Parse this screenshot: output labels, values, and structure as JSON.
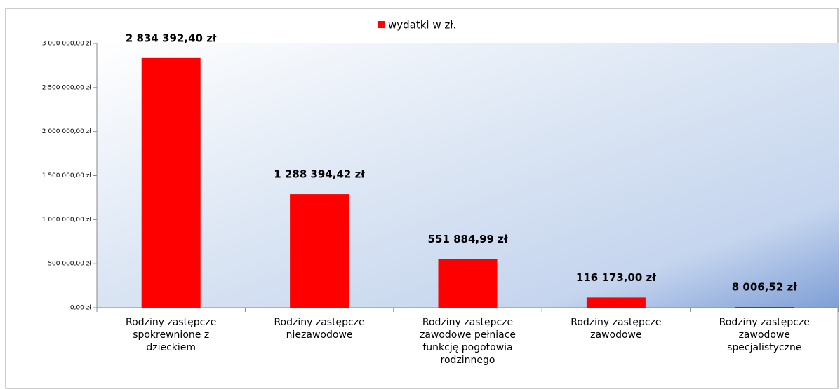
{
  "chart_data": {
    "type": "bar",
    "categories": [
      "Rodziny zastępcze spokrewnione z dzieckiem",
      "Rodziny zastępcze niezawodowe",
      "Rodziny zastępcze zawodowe pełniace funkcję pogotowia rodzinnego",
      "Rodziny zastępcze zawodowe",
      "Rodziny zastępcze zawodowe specjalistyczne"
    ],
    "series": [
      {
        "name": "wydatki w zł.",
        "color": "#ff0000",
        "values": [
          2834392.4,
          1288394.42,
          551884.99,
          116173.0,
          8006.52
        ],
        "value_labels": [
          "2 834 392,40 zł",
          "1 288 394,42 zł",
          "551 884,99 zł",
          "116 173,00 zł",
          "8 006,52 zł"
        ]
      }
    ],
    "ylim": [
      0,
      3000000
    ],
    "yticks": [
      {
        "value": 0,
        "label": "0,00 zł"
      },
      {
        "value": 500000,
        "label": "500 000,00 zł"
      },
      {
        "value": 1000000,
        "label": "1 000 000,00 zł"
      },
      {
        "value": 1500000,
        "label": "1 500 000,00 zł"
      },
      {
        "value": 2000000,
        "label": "2 000 000,00 zł"
      },
      {
        "value": 2500000,
        "label": "2 500 000,00 zł"
      },
      {
        "value": 3000000,
        "label": "3 000 000,00 zł"
      }
    ],
    "legend": "top",
    "grid": false
  }
}
